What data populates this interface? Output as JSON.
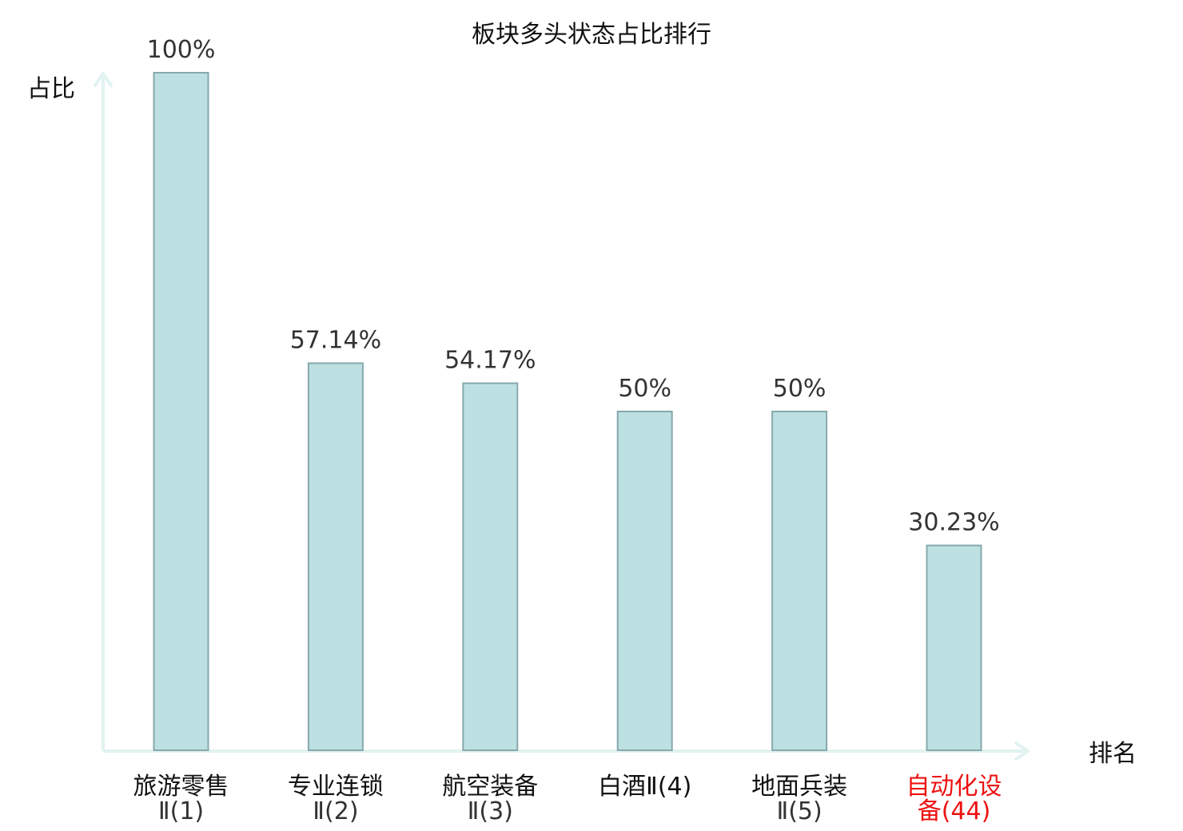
{
  "chart_data": {
    "type": "bar",
    "title": "板块多头状态占比排行",
    "ylabel": "占比",
    "xlabel": "排名",
    "ylim": [
      0,
      100
    ],
    "grid": false,
    "legend": "none",
    "value_suffix": "%",
    "categories": [
      {
        "name": "旅游零售",
        "line1": "旅游零售",
        "line2": "Ⅱ(1)",
        "highlight": false
      },
      {
        "name": "专业连锁",
        "line1": "专业连锁",
        "line2": "Ⅱ(2)",
        "highlight": false
      },
      {
        "name": "航空装备",
        "line1": "航空装备",
        "line2": "Ⅱ(3)",
        "highlight": false
      },
      {
        "name": "白酒",
        "line1": "白酒Ⅱ(4)",
        "line2": "",
        "highlight": false
      },
      {
        "name": "地面兵装",
        "line1": "地面兵装",
        "line2": "Ⅱ(5)",
        "highlight": false
      },
      {
        "name": "自动化设备",
        "line1": "自动化设",
        "line2": "备(44)",
        "highlight": true
      }
    ],
    "values": [
      100,
      57.14,
      54.17,
      50,
      50,
      30.23
    ],
    "value_labels": [
      "100%",
      "57.14%",
      "54.17%",
      "50%",
      "50%",
      "30.23%"
    ]
  },
  "colors": {
    "bar_fill": "#bde0e3",
    "bar_stroke": "#86a9ac",
    "axis": "#e2f3f1",
    "label_normal": "#111111",
    "label_line2": "#333333",
    "label_highlight": "#ee1111"
  }
}
